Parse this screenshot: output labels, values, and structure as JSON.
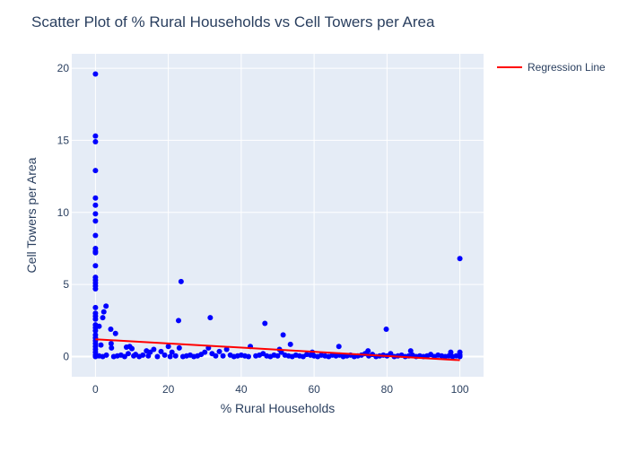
{
  "chart_data": {
    "type": "scatter",
    "title": "Scatter Plot of % Rural Households vs Cell Towers per Area",
    "xlabel": "% Rural Households",
    "ylabel": "Cell Towers per Area",
    "xlim": [
      -6.5,
      106.5
    ],
    "ylim": [
      -1.4,
      21
    ],
    "x_ticks": [
      0,
      20,
      40,
      60,
      80,
      100
    ],
    "y_ticks": [
      0,
      5,
      10,
      15,
      20
    ],
    "grid": true,
    "legend_position": "top-right",
    "colors": {
      "points": "#0000ff",
      "regression": "#ff0000",
      "plot_bg": "#e5ecf6",
      "grid": "#ffffff",
      "text": "#2a3f5f"
    },
    "series": [
      {
        "type": "scatter",
        "points": [
          [
            0,
            19.6
          ],
          [
            0,
            15.3
          ],
          [
            0,
            14.9
          ],
          [
            0,
            12.9
          ],
          [
            0,
            11.0
          ],
          [
            0,
            10.5
          ],
          [
            0,
            9.9
          ],
          [
            0,
            9.4
          ],
          [
            0,
            8.4
          ],
          [
            0,
            7.5
          ],
          [
            0,
            7.3
          ],
          [
            0,
            7.2
          ],
          [
            0,
            6.3
          ],
          [
            0,
            5.5
          ],
          [
            0,
            5.3
          ],
          [
            0,
            5.1
          ],
          [
            0,
            4.9
          ],
          [
            0,
            4.7
          ],
          [
            0,
            3.4
          ],
          [
            0,
            3.0
          ],
          [
            0,
            2.8
          ],
          [
            0,
            2.6
          ],
          [
            0,
            2.2
          ],
          [
            0,
            2.0
          ],
          [
            0,
            1.8
          ],
          [
            0,
            1.5
          ],
          [
            0,
            1.3
          ],
          [
            0,
            1.1
          ],
          [
            0,
            0.9
          ],
          [
            0,
            0.7
          ],
          [
            0,
            0.5
          ],
          [
            0,
            0.3
          ],
          [
            0,
            0.1
          ],
          [
            0,
            0.0
          ],
          [
            1,
            2.1
          ],
          [
            1.5,
            0.8
          ],
          [
            2,
            2.7
          ],
          [
            2.3,
            3.1
          ],
          [
            2.9,
            3.5
          ],
          [
            4.2,
            1.9
          ],
          [
            4.3,
            0.9
          ],
          [
            4.4,
            0.6
          ],
          [
            5.5,
            1.6
          ],
          [
            1,
            0.05
          ],
          [
            2,
            0.0
          ],
          [
            3,
            0.1
          ],
          [
            5,
            0.0
          ],
          [
            6,
            0.05
          ],
          [
            7,
            0.1
          ],
          [
            8,
            0.0
          ],
          [
            8.5,
            0.65
          ],
          [
            9,
            0.2
          ],
          [
            9.4,
            0.7
          ],
          [
            10,
            0.55
          ],
          [
            10.5,
            0.05
          ],
          [
            11,
            0.15
          ],
          [
            12,
            0.0
          ],
          [
            13,
            0.1
          ],
          [
            14,
            0.4
          ],
          [
            14.5,
            0.05
          ],
          [
            15,
            0.3
          ],
          [
            16,
            0.5
          ],
          [
            17,
            0.0
          ],
          [
            18,
            0.35
          ],
          [
            19,
            0.1
          ],
          [
            20,
            0.7
          ],
          [
            20.5,
            0.0
          ],
          [
            21,
            0.3
          ],
          [
            22,
            0.05
          ],
          [
            22.8,
            2.5
          ],
          [
            23,
            0.6
          ],
          [
            23.5,
            5.2
          ],
          [
            24,
            0.0
          ],
          [
            25,
            0.05
          ],
          [
            26,
            0.1
          ],
          [
            27,
            0.0
          ],
          [
            28,
            0.05
          ],
          [
            29,
            0.15
          ],
          [
            30,
            0.3
          ],
          [
            31,
            0.6
          ],
          [
            31.5,
            2.7
          ],
          [
            32,
            0.2
          ],
          [
            33,
            0.05
          ],
          [
            34,
            0.35
          ],
          [
            35,
            0.05
          ],
          [
            36,
            0.5
          ],
          [
            37,
            0.1
          ],
          [
            38,
            0.0
          ],
          [
            39,
            0.05
          ],
          [
            40,
            0.1
          ],
          [
            41,
            0.05
          ],
          [
            42,
            0.0
          ],
          [
            42.5,
            0.7
          ],
          [
            44,
            0.05
          ],
          [
            45,
            0.1
          ],
          [
            46,
            0.2
          ],
          [
            46.5,
            2.3
          ],
          [
            47,
            0.05
          ],
          [
            48,
            0.0
          ],
          [
            49,
            0.1
          ],
          [
            50,
            0.05
          ],
          [
            50.5,
            0.5
          ],
          [
            51,
            0.3
          ],
          [
            51.5,
            1.5
          ],
          [
            52,
            0.1
          ],
          [
            53,
            0.05
          ],
          [
            53.5,
            0.85
          ],
          [
            54,
            0.0
          ],
          [
            55,
            0.1
          ],
          [
            56,
            0.05
          ],
          [
            57,
            0.0
          ],
          [
            58,
            0.15
          ],
          [
            59,
            0.1
          ],
          [
            59.5,
            0.3
          ],
          [
            60,
            0.05
          ],
          [
            61,
            0.0
          ],
          [
            62,
            0.1
          ],
          [
            63,
            0.05
          ],
          [
            64,
            0.0
          ],
          [
            65,
            0.1
          ],
          [
            66,
            0.05
          ],
          [
            66.8,
            0.7
          ],
          [
            67,
            0.1
          ],
          [
            68,
            0.0
          ],
          [
            69,
            0.05
          ],
          [
            70,
            0.1
          ],
          [
            71,
            0.0
          ],
          [
            72,
            0.05
          ],
          [
            73,
            0.1
          ],
          [
            74,
            0.2
          ],
          [
            74.8,
            0.4
          ],
          [
            75,
            0.05
          ],
          [
            76,
            0.15
          ],
          [
            77,
            0.0
          ],
          [
            78,
            0.05
          ],
          [
            79,
            0.1
          ],
          [
            79.8,
            1.9
          ],
          [
            80,
            0.05
          ],
          [
            81,
            0.2
          ],
          [
            82,
            0.0
          ],
          [
            83,
            0.05
          ],
          [
            84,
            0.1
          ],
          [
            85,
            0.0
          ],
          [
            86,
            0.05
          ],
          [
            86.5,
            0.4
          ],
          [
            87,
            0.1
          ],
          [
            88,
            0.0
          ],
          [
            89,
            0.05
          ],
          [
            90,
            0.0
          ],
          [
            91,
            0.05
          ],
          [
            92,
            0.15
          ],
          [
            93,
            0.0
          ],
          [
            94,
            0.1
          ],
          [
            95,
            0.05
          ],
          [
            96,
            0.0
          ],
          [
            97,
            0.05
          ],
          [
            97.5,
            0.3
          ],
          [
            98,
            0.0
          ],
          [
            99,
            0.05
          ],
          [
            100,
            0.0
          ],
          [
            100,
            0.1
          ],
          [
            100,
            0.3
          ],
          [
            100,
            6.8
          ]
        ]
      },
      {
        "type": "line",
        "name": "Regression Line",
        "x": [
          0,
          100
        ],
        "y": [
          1.2,
          -0.25
        ]
      }
    ]
  }
}
